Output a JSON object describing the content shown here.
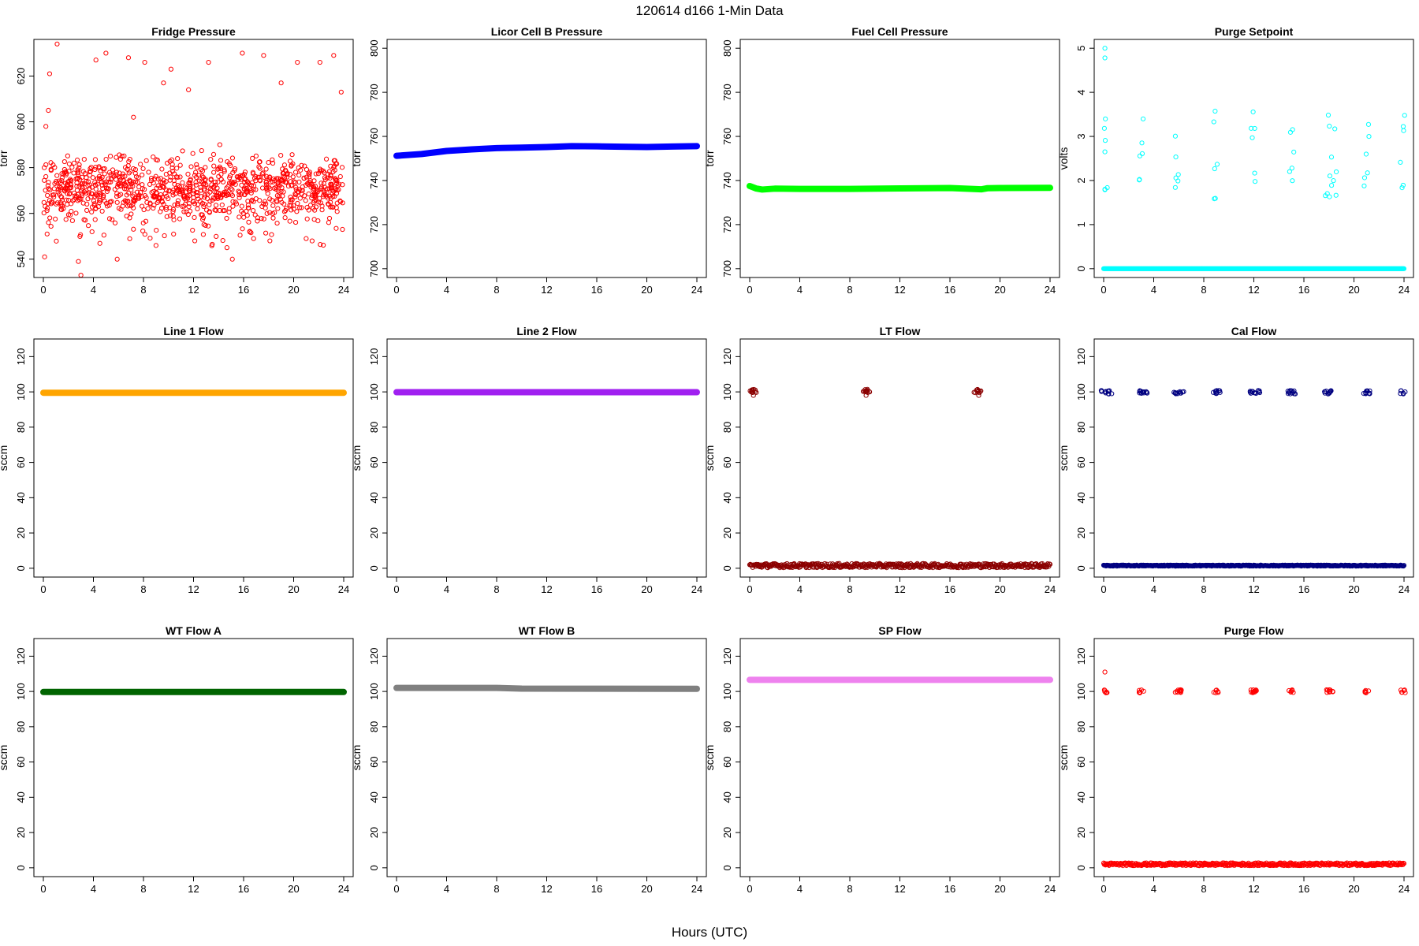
{
  "figure": {
    "title": "120614   d166   1-Min Data",
    "xlabel": "Hours (UTC)"
  },
  "chart_data": [
    {
      "id": "fridge",
      "type": "scatter",
      "title": "Fridge Pressure",
      "ylabel": "torr",
      "color": "#ff0000",
      "xlim": [
        0,
        24
      ],
      "xticks": [
        0,
        4,
        8,
        12,
        16,
        20,
        24
      ],
      "ylim": [
        532,
        636
      ],
      "yticks": [
        540,
        560,
        580,
        600,
        620
      ],
      "pattern": "scatter-noisy",
      "base": 571,
      "spread": 9,
      "outliers": [
        [
          1.1,
          634
        ],
        [
          0.5,
          621
        ],
        [
          0.4,
          605
        ],
        [
          0.2,
          598
        ],
        [
          0.1,
          541
        ],
        [
          0.3,
          551
        ],
        [
          2.8,
          539
        ],
        [
          3.0,
          533
        ],
        [
          5.9,
          540
        ],
        [
          4.2,
          627
        ],
        [
          5.0,
          630
        ],
        [
          6.8,
          628
        ],
        [
          7.2,
          602
        ],
        [
          8.1,
          626
        ],
        [
          9.0,
          546
        ],
        [
          9.6,
          617
        ],
        [
          10.2,
          623
        ],
        [
          11.6,
          614
        ],
        [
          12.1,
          548
        ],
        [
          13.2,
          626
        ],
        [
          14.1,
          590
        ],
        [
          15.1,
          540
        ],
        [
          15.9,
          630
        ],
        [
          16.8,
          549
        ],
        [
          17.6,
          629
        ],
        [
          18.1,
          548
        ],
        [
          19.0,
          617
        ],
        [
          20.3,
          626
        ],
        [
          21.0,
          549
        ],
        [
          22.1,
          626
        ],
        [
          23.2,
          629
        ],
        [
          23.9,
          553
        ],
        [
          23.8,
          613
        ]
      ]
    },
    {
      "id": "licor",
      "type": "line",
      "title": "Licor Cell B Pressure",
      "ylabel": "torr",
      "color": "#0000ff",
      "xlim": [
        0,
        24
      ],
      "xticks": [
        0,
        4,
        8,
        12,
        16,
        20,
        24
      ],
      "ylim": [
        696,
        804
      ],
      "yticks": [
        700,
        720,
        740,
        760,
        780,
        800
      ],
      "x": [
        0,
        2,
        4,
        6,
        8,
        10,
        12,
        14,
        16,
        18,
        20,
        22,
        24
      ],
      "y": [
        751.2,
        752.0,
        753.4,
        754.1,
        754.7,
        754.9,
        755.2,
        755.6,
        755.5,
        755.3,
        755.2,
        755.4,
        755.6
      ]
    },
    {
      "id": "fuelcell",
      "type": "line",
      "title": "Fuel Cell Pressure",
      "ylabel": "torr",
      "color": "#00ff00",
      "xlim": [
        0,
        24
      ],
      "xticks": [
        0,
        4,
        8,
        12,
        16,
        20,
        24
      ],
      "ylim": [
        696,
        804
      ],
      "yticks": [
        700,
        720,
        740,
        760,
        780,
        800
      ],
      "x": [
        0,
        0.5,
        1,
        2,
        4,
        8,
        12,
        16,
        18.5,
        19,
        20,
        24
      ],
      "y": [
        737.5,
        736.4,
        735.9,
        736.3,
        736.2,
        736.2,
        736.4,
        736.6,
        736.0,
        736.5,
        736.6,
        736.7
      ]
    },
    {
      "id": "purgesp",
      "type": "scatter",
      "title": "Purge Setpoint",
      "ylabel": "volts",
      "color": "#00ffff",
      "xlim": [
        0,
        24
      ],
      "xticks": [
        0,
        4,
        8,
        12,
        16,
        20,
        24
      ],
      "ylim": [
        -0.2,
        5.2
      ],
      "yticks": [
        0,
        1,
        2,
        3,
        4,
        5
      ],
      "pattern": "baseline-bursts",
      "base": 0.0,
      "burst_value": 2.58,
      "burst_times": [
        0.1,
        3.0,
        5.9,
        9.0,
        11.9,
        15.0,
        17.9,
        18.4,
        21.0,
        23.9
      ],
      "outliers": [
        [
          0.1,
          5.0
        ],
        [
          0.1,
          4.78
        ],
        [
          0.1,
          2.65
        ]
      ]
    },
    {
      "id": "line1",
      "type": "line",
      "title": "Line 1 Flow",
      "ylabel": "sccm",
      "color": "#ffa500",
      "xlim": [
        0,
        24
      ],
      "xticks": [
        0,
        4,
        8,
        12,
        16,
        20,
        24
      ],
      "ylim": [
        -5,
        130
      ],
      "yticks": [
        0,
        20,
        40,
        60,
        80,
        100,
        120
      ],
      "x": [
        0,
        24
      ],
      "y": [
        99.5,
        99.5
      ]
    },
    {
      "id": "line2",
      "type": "line",
      "title": "Line 2 Flow",
      "ylabel": "sccm",
      "color": "#a020f0",
      "xlim": [
        0,
        24
      ],
      "xticks": [
        0,
        4,
        8,
        12,
        16,
        20,
        24
      ],
      "ylim": [
        -5,
        130
      ],
      "yticks": [
        0,
        20,
        40,
        60,
        80,
        100,
        120
      ],
      "x": [
        0,
        24
      ],
      "y": [
        99.8,
        99.8
      ]
    },
    {
      "id": "ltflow",
      "type": "scatter",
      "title": "LT Flow",
      "ylabel": "sccm",
      "color": "#8b0000",
      "xlim": [
        0,
        24
      ],
      "xticks": [
        0,
        4,
        8,
        12,
        16,
        20,
        24
      ],
      "ylim": [
        -5,
        130
      ],
      "yticks": [
        0,
        20,
        40,
        60,
        80,
        100,
        120
      ],
      "pattern": "baseline-bursts",
      "base": 1.5,
      "spread": 1.2,
      "burst_value": 100.5,
      "burst_times": [
        0.2,
        0.4,
        9.2,
        9.4,
        18.1,
        18.3
      ],
      "outliers": [
        [
          0.3,
          98
        ],
        [
          9.3,
          98
        ],
        [
          18.3,
          98
        ]
      ]
    },
    {
      "id": "calflow",
      "type": "scatter",
      "title": "Cal Flow",
      "ylabel": "sccm",
      "color": "#000080",
      "xlim": [
        0,
        24
      ],
      "xticks": [
        0,
        4,
        8,
        12,
        16,
        20,
        24
      ],
      "ylim": [
        -5,
        130
      ],
      "yticks": [
        0,
        20,
        40,
        60,
        80,
        100,
        120
      ],
      "pattern": "baseline-bursts",
      "base": 1.5,
      "spread": 0.3,
      "burst_value": 99.8,
      "burst_times": [
        0.0,
        0.5,
        2.9,
        3.3,
        5.8,
        6.2,
        8.9,
        9.2,
        11.9,
        12.3,
        14.8,
        15.2,
        17.8,
        18.1,
        20.9,
        21.2,
        23.9
      ]
    },
    {
      "id": "wtflowa",
      "type": "line",
      "title": "WT Flow A",
      "ylabel": "sccm",
      "color": "#006400",
      "xlim": [
        0,
        24
      ],
      "xticks": [
        0,
        4,
        8,
        12,
        16,
        20,
        24
      ],
      "ylim": [
        -5,
        130
      ],
      "yticks": [
        0,
        20,
        40,
        60,
        80,
        100,
        120
      ],
      "x": [
        0,
        24
      ],
      "y": [
        99.7,
        99.7
      ]
    },
    {
      "id": "wtflowb",
      "type": "line",
      "title": "WT Flow B",
      "ylabel": "sccm",
      "color": "#808080",
      "xlim": [
        0,
        24
      ],
      "xticks": [
        0,
        4,
        8,
        12,
        16,
        20,
        24
      ],
      "ylim": [
        -5,
        130
      ],
      "yticks": [
        0,
        20,
        40,
        60,
        80,
        100,
        120
      ],
      "x": [
        0,
        8,
        10,
        24
      ],
      "y": [
        102.0,
        102.0,
        101.6,
        101.5
      ]
    },
    {
      "id": "spflow",
      "type": "line",
      "title": "SP Flow",
      "ylabel": "sccm",
      "color": "#ee82ee",
      "xlim": [
        0,
        24
      ],
      "xticks": [
        0,
        4,
        8,
        12,
        16,
        20,
        24
      ],
      "ylim": [
        -5,
        130
      ],
      "yticks": [
        0,
        20,
        40,
        60,
        80,
        100,
        120
      ],
      "x": [
        0,
        24
      ],
      "y": [
        106.6,
        106.6
      ]
    },
    {
      "id": "purgeflow",
      "type": "scatter",
      "title": "Purge Flow",
      "ylabel": "sccm",
      "color": "#ff0000",
      "xlim": [
        0,
        24
      ],
      "xticks": [
        0,
        4,
        8,
        12,
        16,
        20,
        24
      ],
      "ylim": [
        -5,
        130
      ],
      "yticks": [
        0,
        20,
        40,
        60,
        80,
        100,
        120
      ],
      "pattern": "baseline-bursts",
      "base": 2.0,
      "spread": 0.8,
      "burst_value": 100.0,
      "burst_times": [
        0.1,
        3.0,
        5.9,
        6.1,
        9.0,
        11.9,
        12.1,
        15.0,
        17.9,
        18.2,
        21.0,
        23.9
      ],
      "outliers": [
        [
          0.1,
          111
        ]
      ]
    }
  ]
}
